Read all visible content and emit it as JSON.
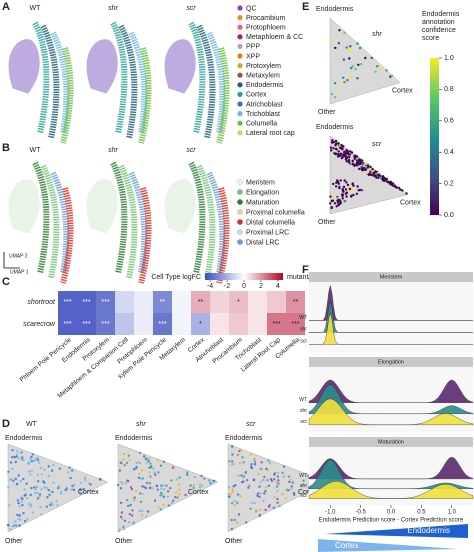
{
  "panel_a": {
    "label": "A",
    "titles": [
      "WT",
      "shr",
      "scr"
    ],
    "legend": [
      {
        "name": "QC",
        "color": "#8e3fb0"
      },
      {
        "name": "Procambium",
        "color": "#e8902a"
      },
      {
        "name": "Protophloem",
        "color": "#e85a9a"
      },
      {
        "name": "Metaphloem & CC",
        "color": "#c2185b"
      },
      {
        "name": "PPP",
        "color": "#b39ddb"
      },
      {
        "name": "XPP",
        "color": "#f57c00"
      },
      {
        "name": "Protoxylem",
        "color": "#e0a030"
      },
      {
        "name": "Metaxylem",
        "color": "#8d5a2b"
      },
      {
        "name": "Endodermis",
        "color": "#1f5f7a"
      },
      {
        "name": "Cortex",
        "color": "#2aa198"
      },
      {
        "name": "Atrichoblast",
        "color": "#3b6fc4"
      },
      {
        "name": "Trichoblast",
        "color": "#6fb7e0"
      },
      {
        "name": "Columella",
        "color": "#6cbf3c"
      },
      {
        "name": "Lateral root cap",
        "color": "#b9dc6a"
      }
    ]
  },
  "panel_b": {
    "label": "B",
    "titles": [
      "WT",
      "shr",
      "scr"
    ],
    "legend": [
      {
        "name": "Meristem",
        "color": "#e6f2e2"
      },
      {
        "name": "Elongation",
        "color": "#74c476"
      },
      {
        "name": "Maturation",
        "color": "#2e7d32"
      },
      {
        "name": "Proximal columella",
        "color": "#f6c4b4"
      },
      {
        "name": "Distal columella",
        "color": "#d73027"
      },
      {
        "name": "Proximal LRC",
        "color": "#c6dbef"
      },
      {
        "name": "Distal LRC",
        "color": "#6a9fd4"
      }
    ],
    "axis_y": "UMAP 2",
    "axis_x": "UMAP 1"
  },
  "panel_c": {
    "label": "C",
    "colorbar_title": "Cell Type logFC",
    "colorbar_note": "mutant/WT",
    "clim": [
      -4.6,
      4.6
    ],
    "cticks": [
      -4,
      -2,
      0,
      2,
      4
    ],
    "rows": [
      "shortroot",
      "scarecrow"
    ],
    "columns": [
      "Phloem Pole Pericycle",
      "Endodermis",
      "Protoxylem",
      "Metaphloem & Companion Cell",
      "Protophloem",
      "Xylem Pole Pericycle",
      "Metaxylem",
      "Cortex",
      "Atrichoblast",
      "Procambium",
      "Trichoblast",
      "Lateral Root Cap",
      "Columella"
    ],
    "values": [
      [
        -4,
        -4,
        -3.5,
        -1,
        -0.5,
        -3,
        -0.3,
        1.5,
        0.8,
        1.2,
        0.5,
        1,
        2
      ],
      [
        -4,
        -4,
        -3.5,
        -1.5,
        -0.5,
        -3.5,
        -0.3,
        -2,
        0.5,
        1,
        0.5,
        2.5,
        2.5
      ]
    ],
    "significance": [
      [
        "***",
        "***",
        "***",
        null,
        null,
        "**",
        null,
        "**",
        null,
        "*",
        null,
        null,
        "**"
      ],
      [
        "***",
        "***",
        "***",
        null,
        null,
        "***",
        null,
        "*",
        null,
        null,
        null,
        "***",
        "***"
      ]
    ]
  },
  "panel_d": {
    "label": "D",
    "titles": [
      "WT",
      "shr",
      "scr"
    ],
    "top": "Endodermis",
    "right": "Cortex",
    "bottom": "Other"
  },
  "panel_e": {
    "label": "E",
    "plots": [
      {
        "top": "Endodermis",
        "name": "shr",
        "right": "Cortex",
        "bottom": "Other"
      },
      {
        "top": "Endodermis",
        "name": "scr",
        "right": "Cortex",
        "bottom": "Other"
      }
    ],
    "colorbar_title": [
      "Endodermis",
      "annotation",
      "confidence",
      "score"
    ],
    "clim": [
      0,
      1
    ],
    "cticks": [
      {
        "value": 0,
        "label": "0.0"
      },
      0.2,
      0.4,
      0.6,
      0.8,
      {
        "value": 1,
        "label": "1.0"
      }
    ]
  },
  "panel_f": {
    "label": "F",
    "strips": [
      "Meristem",
      "Elongation",
      "Maturation"
    ],
    "rows": [
      "WT",
      "shr",
      "scr"
    ],
    "xlim": [
      -1.35,
      1.35
    ],
    "xticks": [
      {
        "value": -1,
        "label": "-1.0"
      },
      -0.5,
      {
        "value": 0,
        "label": "0.0"
      },
      0.5,
      {
        "value": 1,
        "label": "1.0"
      }
    ],
    "xlabel": "Endodermis Prediction score - Cortex Prediction score",
    "arrow_right": "Endodermis",
    "arrow_left": "Cortex"
  }
}
